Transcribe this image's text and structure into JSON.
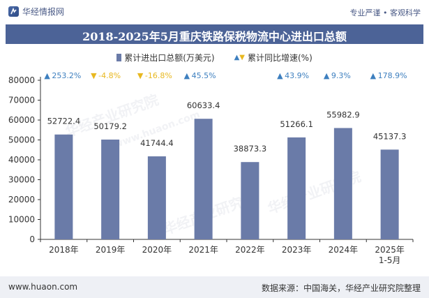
{
  "brand": {
    "name": "华经情报网",
    "tagline": "专业严谨 • 客观科学"
  },
  "footer": {
    "url": "www.huaon.com",
    "source": "数据来源：中国海关，华经产业研究院整理"
  },
  "watermarks": [
    "华经产业研究院",
    "www.huaon.com"
  ],
  "colors": {
    "bar": "#6a7ba8",
    "title_band": "#4c6397",
    "up": "#3d7fbf",
    "down": "#e8b820"
  },
  "chart_data": {
    "type": "bar",
    "title": "2018-2025年5月重庆铁路保税物流中心进出口总额",
    "categories": [
      "2018年",
      "2019年",
      "2020年",
      "2021年",
      "2022年",
      "2023年",
      "2024年",
      "2025年\n1-5月"
    ],
    "series": [
      {
        "name": "累计进出口总额(万美元)",
        "values": [
          52722.4,
          50179.2,
          41744.4,
          60633.4,
          38873.3,
          51266.1,
          55982.9,
          45137.3
        ]
      },
      {
        "name": "累计同比增速(%)",
        "values": [
          253.2,
          -4.8,
          -16.8,
          45.5,
          null,
          43.9,
          9.3,
          178.9
        ]
      }
    ],
    "growth_labels": [
      "253.2%",
      "-4.8%",
      "-16.8%",
      "45.5%",
      "",
      "43.9%",
      "9.3%",
      "178.9%"
    ],
    "value_labels": [
      "52722.4",
      "50179.2",
      "41744.4",
      "60633.4",
      "38873.3",
      "51266.1",
      "55982.9",
      "45137.3"
    ],
    "y_ticks": [
      "0",
      "10000",
      "20000",
      "30000",
      "40000",
      "50000",
      "60000",
      "70000",
      "80000"
    ],
    "ylim": [
      0,
      80000
    ],
    "grid": false,
    "legend_position": "top-center"
  }
}
